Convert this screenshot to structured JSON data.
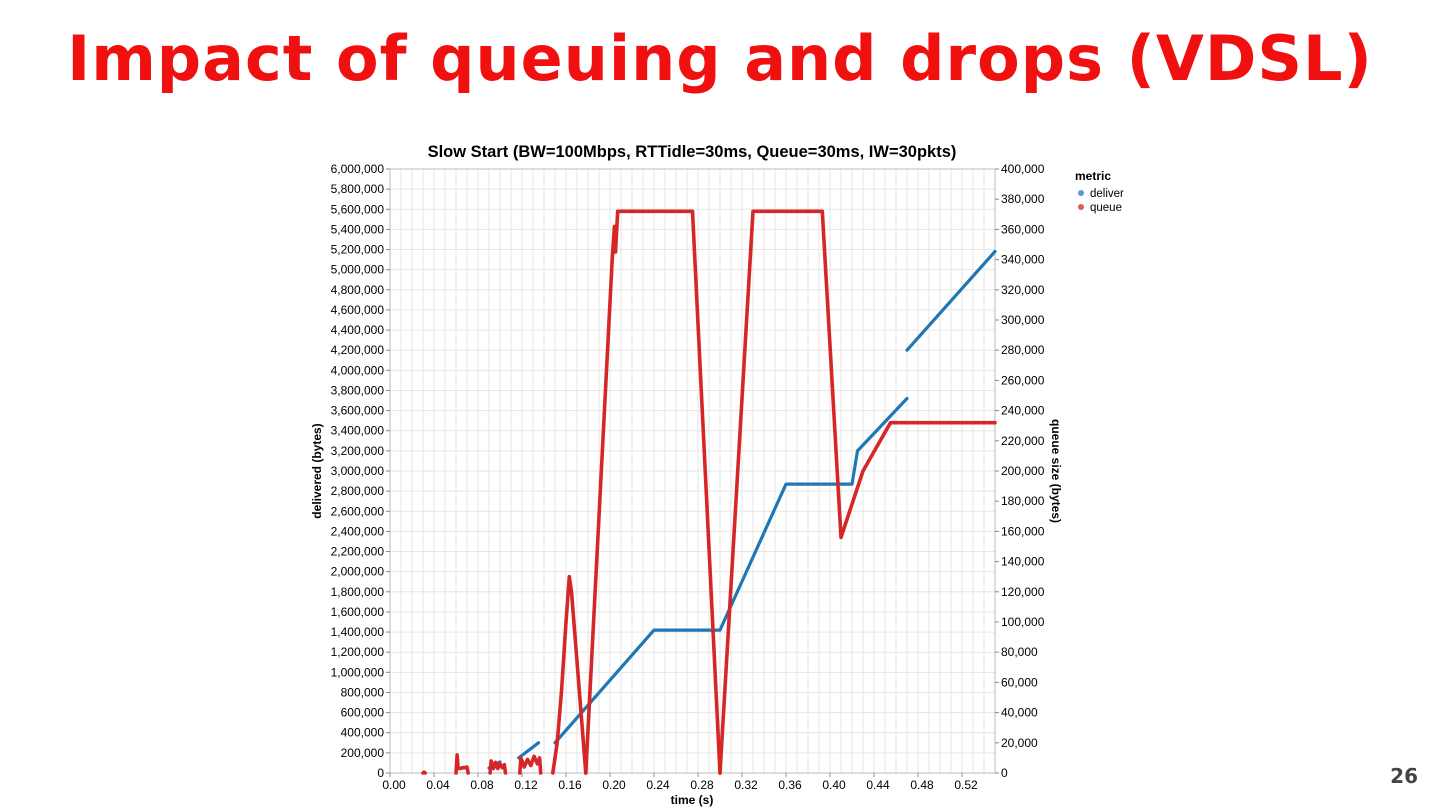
{
  "slide": {
    "title": "Impact of queuing and drops (VDSL)",
    "page_number": "26"
  },
  "chart_data": {
    "type": "line",
    "title": "Slow Start (BW=100Mbps, RTTidle=30ms, Queue=30ms, IW=30pkts)",
    "xlabel": "time (s)",
    "ylabel_left": "delivered (bytes)",
    "ylabel_right": "queue size (bytes)",
    "xlim": [
      0.0,
      0.55
    ],
    "ylim_left": [
      0,
      6000000
    ],
    "ylim_right": [
      0,
      400000
    ],
    "x_ticks": [
      "0.00",
      "0.04",
      "0.08",
      "0.12",
      "0.16",
      "0.20",
      "0.24",
      "0.28",
      "0.32",
      "0.36",
      "0.40",
      "0.44",
      "0.48",
      "0.52"
    ],
    "x_tick_values": [
      0.0,
      0.04,
      0.08,
      0.12,
      0.16,
      0.2,
      0.24,
      0.28,
      0.32,
      0.36,
      0.4,
      0.44,
      0.48,
      0.52
    ],
    "y_left_ticks": [
      "0",
      "200,000",
      "400,000",
      "600,000",
      "800,000",
      "1,000,000",
      "1,200,000",
      "1,400,000",
      "1,600,000",
      "1,800,000",
      "2,000,000",
      "2,200,000",
      "2,400,000",
      "2,600,000",
      "2,800,000",
      "3,000,000",
      "3,200,000",
      "3,400,000",
      "3,600,000",
      "3,800,000",
      "4,000,000",
      "4,200,000",
      "4,400,000",
      "4,600,000",
      "4,800,000",
      "5,000,000",
      "5,200,000",
      "5,400,000",
      "5,600,000",
      "5,800,000",
      "6,000,000"
    ],
    "y_right_ticks": [
      "0",
      "20,000",
      "40,000",
      "60,000",
      "80,000",
      "100,000",
      "120,000",
      "140,000",
      "160,000",
      "180,000",
      "200,000",
      "220,000",
      "240,000",
      "260,000",
      "280,000",
      "300,000",
      "320,000",
      "340,000",
      "360,000",
      "380,000",
      "400,000"
    ],
    "grid": true,
    "legend": {
      "title": "metric",
      "placement": "right"
    },
    "series": [
      {
        "name": "deliver",
        "axis": "left",
        "color": "#1f77b4",
        "segments": [
          [
            [
              0.09,
              50000
            ],
            [
              0.1,
              110000
            ]
          ],
          [
            [
              0.117,
              150000
            ],
            [
              0.135,
              300000
            ]
          ],
          [
            [
              0.15,
              300000
            ],
            [
              0.24,
              1420000
            ],
            [
              0.3,
              1420000
            ],
            [
              0.36,
              2870000
            ],
            [
              0.42,
              2870000
            ],
            [
              0.425,
              3200000
            ],
            [
              0.47,
              3720000
            ]
          ],
          [
            [
              0.47,
              4200000
            ],
            [
              0.55,
              5180000
            ]
          ]
        ]
      },
      {
        "name": "queue",
        "axis": "right",
        "color": "#d62728",
        "segments": [
          [
            [
              0.03,
              0
            ],
            [
              0.031,
              600
            ],
            [
              0.032,
              0
            ]
          ],
          [
            [
              0.06,
              0
            ],
            [
              0.061,
              12000
            ],
            [
              0.062,
              3000
            ],
            [
              0.064,
              3000
            ],
            [
              0.066,
              3500
            ],
            [
              0.068,
              3500
            ],
            [
              0.07,
              4000
            ],
            [
              0.071,
              0
            ]
          ],
          [
            [
              0.091,
              0
            ],
            [
              0.092,
              8000
            ],
            [
              0.094,
              3000
            ],
            [
              0.096,
              7000
            ],
            [
              0.098,
              3000
            ],
            [
              0.1,
              6000
            ],
            [
              0.102,
              3500
            ],
            [
              0.104,
              5500
            ],
            [
              0.105,
              0
            ]
          ],
          [
            [
              0.118,
              0
            ],
            [
              0.119,
              10000
            ],
            [
              0.122,
              4000
            ],
            [
              0.125,
              9000
            ],
            [
              0.128,
              5000
            ],
            [
              0.131,
              11000
            ],
            [
              0.134,
              6000
            ],
            [
              0.136,
              10000
            ],
            [
              0.137,
              0
            ]
          ],
          [
            [
              0.148,
              0
            ],
            [
              0.152,
              20000
            ],
            [
              0.156,
              55000
            ],
            [
              0.16,
              100000
            ],
            [
              0.163,
              130000
            ],
            [
              0.165,
              120000
            ],
            [
              0.178,
              0
            ]
          ],
          [
            [
              0.178,
              0
            ],
            [
              0.202,
              340000
            ],
            [
              0.204,
              362000
            ],
            [
              0.205,
              345000
            ],
            [
              0.207,
              372000
            ],
            [
              0.275,
              372000
            ],
            [
              0.3,
              0
            ]
          ],
          [
            [
              0.3,
              0
            ],
            [
              0.33,
              372000
            ],
            [
              0.393,
              372000
            ],
            [
              0.41,
              156000
            ],
            [
              0.43,
              200000
            ],
            [
              0.455,
              232000
            ],
            [
              0.55,
              232000
            ]
          ]
        ]
      }
    ]
  }
}
